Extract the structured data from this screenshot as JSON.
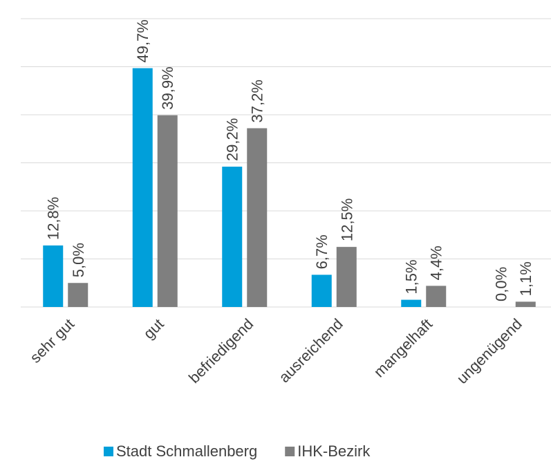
{
  "chart_data": {
    "type": "bar",
    "categories": [
      "sehr gut",
      "gut",
      "befriedigend",
      "ausreichend",
      "mangelhaft",
      "ungenügend"
    ],
    "series": [
      {
        "name": "Stadt Schmallenberg",
        "color": "#009fda",
        "values": [
          12.8,
          49.7,
          29.2,
          6.7,
          1.5,
          0.0
        ],
        "value_labels": [
          "12,8%",
          "49,7%",
          "29,2%",
          "6,7%",
          "1,5%",
          "0,0%"
        ]
      },
      {
        "name": "IHK-Bezirk",
        "color": "#7f7f7f",
        "values": [
          5.0,
          39.9,
          37.2,
          12.5,
          4.4,
          1.1
        ],
        "value_labels": [
          "5,0%",
          "39,9%",
          "37,2%",
          "12,5%",
          "4,4%",
          "1,1%"
        ]
      }
    ],
    "ylim": [
      0,
      60
    ],
    "yticks": [
      0,
      10,
      20,
      30,
      40,
      50,
      60
    ],
    "grid": true,
    "legend": "bottom"
  }
}
